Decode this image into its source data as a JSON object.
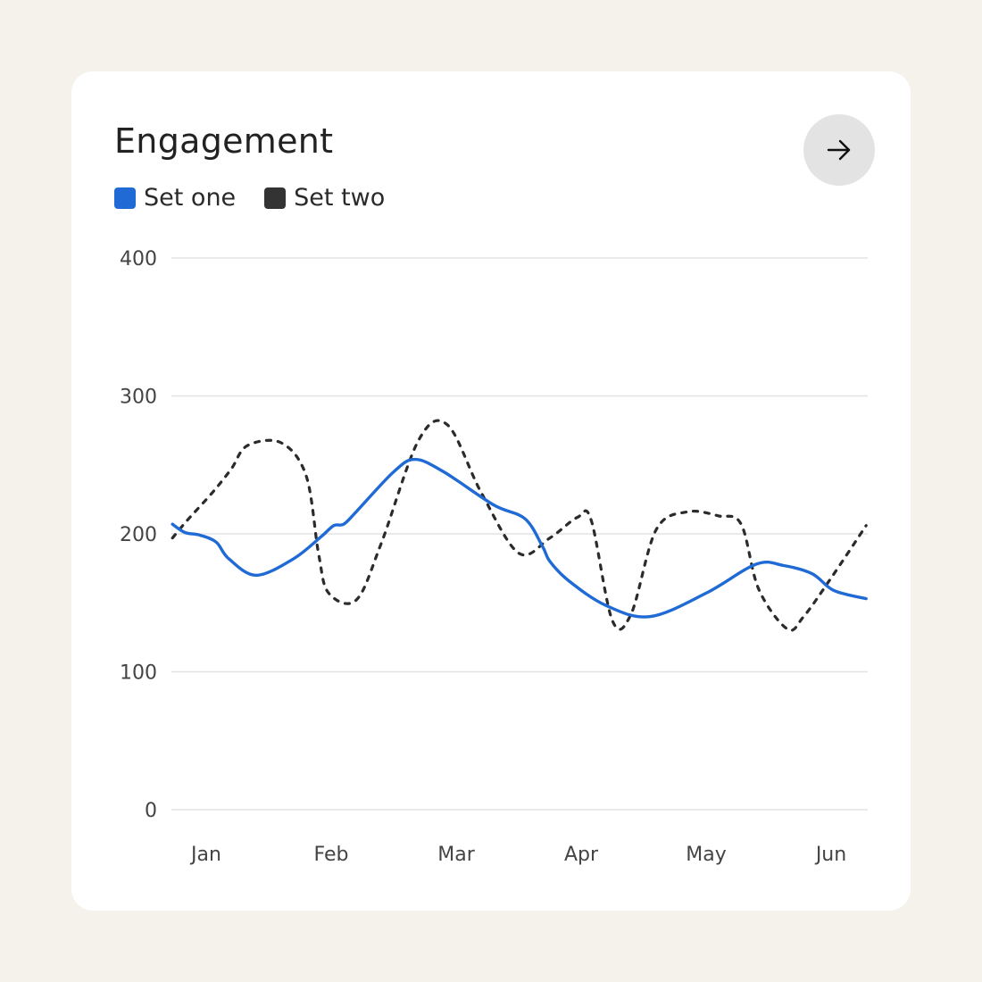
{
  "card": {
    "title": "Engagement",
    "nav_icon": "arrow-right-icon"
  },
  "colors": {
    "page_background": "#f4f2ea",
    "card_background": "#ffffff",
    "series_one": "#1f6ad4",
    "series_two": "#2b2b2b",
    "grid": "#e3e3e3",
    "button": "#e3e3e3"
  },
  "legend": [
    {
      "label": "Set one",
      "color": "#1f6ad4"
    },
    {
      "label": "Set two",
      "color": "#333333"
    }
  ],
  "chart_data": {
    "type": "line",
    "title": "Engagement",
    "xlabel": "",
    "ylabel": "",
    "ylim": [
      0,
      400
    ],
    "yticks": [
      0,
      100,
      200,
      300,
      400
    ],
    "xlim": [
      0.73,
      6.28
    ],
    "categories": [
      "Jan",
      "Feb",
      "Mar",
      "Apr",
      "May",
      "Jun"
    ],
    "category_x": [
      1,
      2,
      3,
      4,
      5,
      6
    ],
    "grid": true,
    "legend_position": "top-left",
    "series": [
      {
        "name": "Set one",
        "style": "solid",
        "x": [
          0.73,
          0.83,
          0.95,
          1.08,
          1.18,
          1.4,
          1.7,
          1.92,
          2.02,
          2.1,
          2.2,
          2.5,
          2.67,
          2.9,
          3.3,
          3.55,
          3.69,
          3.75,
          3.9,
          4.2,
          4.55,
          5.0,
          5.4,
          5.62,
          5.85,
          6.02,
          6.28
        ],
        "y": [
          207,
          201,
          199,
          194,
          182,
          170,
          182,
          198,
          206,
          207,
          216,
          245,
          254,
          245,
          221,
          211,
          191,
          180,
          166,
          148,
          140,
          157,
          178,
          177,
          171,
          159,
          153
        ]
      },
      {
        "name": "Set two",
        "style": "dashed",
        "x": [
          0.73,
          0.85,
          1.05,
          1.2,
          1.33,
          1.6,
          1.8,
          1.9,
          1.98,
          2.2,
          2.4,
          2.7,
          2.93,
          3.2,
          3.5,
          3.75,
          3.97,
          4.08,
          4.25,
          4.4,
          4.6,
          4.85,
          5.1,
          5.28,
          5.42,
          5.65,
          5.78,
          6.0,
          6.28
        ],
        "y": [
          197,
          210,
          230,
          247,
          264,
          266,
          242,
          185,
          157,
          152,
          193,
          268,
          279,
          230,
          186,
          197,
          212,
          210,
          137,
          142,
          203,
          216,
          213,
          207,
          160,
          131,
          140,
          168,
          206
        ]
      }
    ]
  }
}
